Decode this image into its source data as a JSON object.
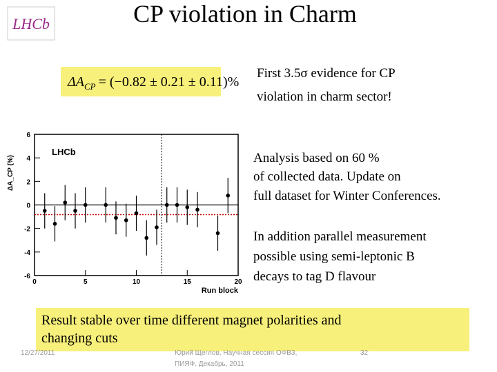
{
  "header": {
    "title": "CP violation in Charm",
    "logo": "LHCb"
  },
  "formula": {
    "symbol": "ΔA",
    "subscript": "CP",
    "rhs": "= (−0.82 ± 0.21 ± 0.11)%"
  },
  "notes": [
    [
      "First 3.5σ evidence for CP",
      "violation in charm sector!"
    ],
    [
      "Analysis based on 60 %",
      "of collected data. Update on",
      "full dataset for Winter Conferences."
    ],
    [
      "In addition parallel measurement",
      "possible using semi-leptonic B",
      "decays to tag D flavour"
    ]
  ],
  "summary": [
    "Result stable over time different magnet polarities and",
    "changing cuts"
  ],
  "footer": {
    "date": "12/27/2011",
    "author": [
      "Юрий Щеглов, Научная сессия ОФВЗ,",
      "ПИЯФ, Декабрь, 2011"
    ],
    "page": "32"
  },
  "chart_data": {
    "type": "scatter",
    "label": "LHCb",
    "x_label": "Run block",
    "y_label": "ΔA_CP (%)",
    "x": [
      1,
      2,
      3,
      4,
      5,
      7,
      8,
      9,
      10,
      11,
      12,
      13,
      14,
      15,
      16,
      18,
      19
    ],
    "values": [
      -0.5,
      -1.6,
      0.2,
      -0.5,
      0,
      0,
      -1.1,
      -1.3,
      -0.7,
      -2.8,
      -1.9,
      0,
      0,
      -0.2,
      -0.4,
      -2.4,
      0.8
    ],
    "errors": [
      1.5,
      1.5,
      1.5,
      1.5,
      1.5,
      1.5,
      1.4,
      1.4,
      1.5,
      1.5,
      1.5,
      1.5,
      1.5,
      1.5,
      1.5,
      1.5,
      1.5
    ],
    "color": "#000000",
    "xlim": [
      0,
      20
    ],
    "xticks": [
      0,
      5,
      10,
      15,
      20
    ],
    "ylim": [
      -6,
      6
    ],
    "yticks": [
      -6,
      -4,
      -2,
      0,
      2,
      4,
      6
    ],
    "zero_line": 0,
    "average_line": -0.82,
    "average_color": "#cc0000",
    "split_line": 12.5
  }
}
